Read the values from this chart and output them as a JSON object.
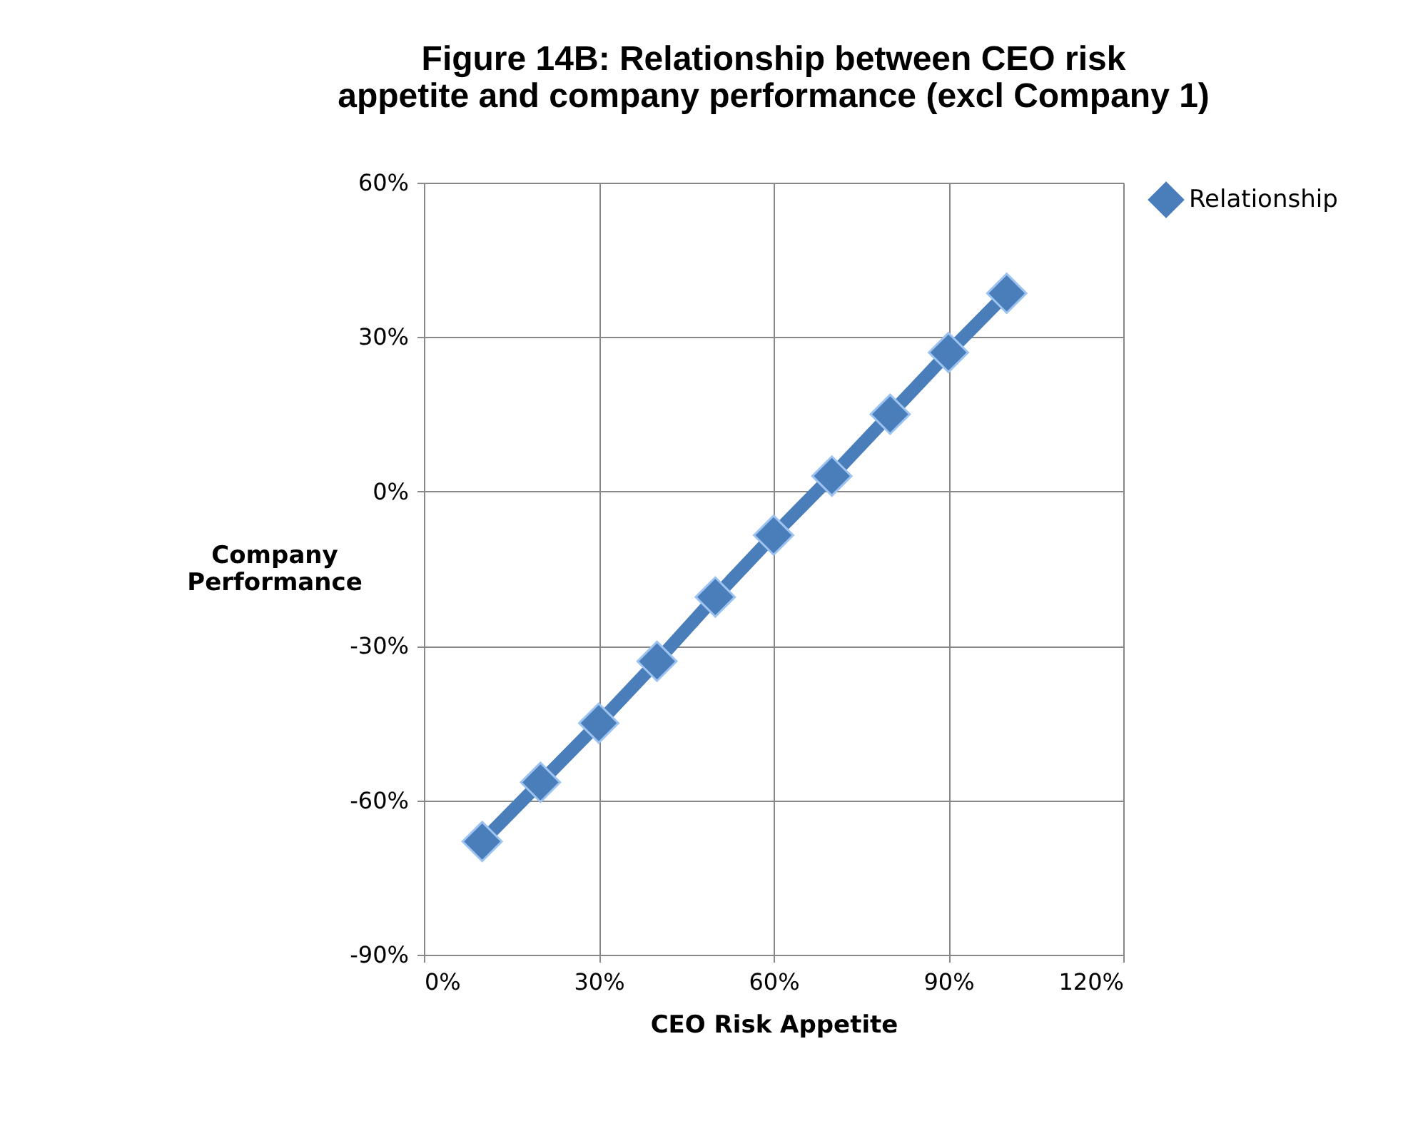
{
  "chart_data": {
    "type": "line",
    "title": "Figure 14B: Relationship between CEO risk appetite and company performance (excl Company 1)",
    "xlabel": "CEO Risk Appetite",
    "ylabel": "Company Performance",
    "x": [
      10,
      20,
      30,
      40,
      50,
      60,
      70,
      80,
      90,
      100
    ],
    "series": [
      {
        "name": "Relationship",
        "color": "#4a7ebb",
        "values": [
          -68,
          -56.5,
          -45,
          -33,
          -20.5,
          -8.5,
          3,
          15,
          27,
          38.5
        ]
      }
    ],
    "xlim": [
      0,
      120
    ],
    "ylim": [
      -90,
      60
    ],
    "xticks": [
      {
        "value": 0,
        "label": "0%"
      },
      {
        "value": 30,
        "label": "30%"
      },
      {
        "value": 60,
        "label": "60%"
      },
      {
        "value": 90,
        "label": "90%"
      },
      {
        "value": 120,
        "label": "120%"
      }
    ],
    "yticks": [
      {
        "value": -90,
        "label": "-90%"
      },
      {
        "value": -60,
        "label": "-60%"
      },
      {
        "value": -30,
        "label": "-30%"
      },
      {
        "value": 0,
        "label": "0%"
      },
      {
        "value": 30,
        "label": "30%"
      },
      {
        "value": 60,
        "label": "60%"
      }
    ],
    "grid": true,
    "legend": "right",
    "marker": "diamond",
    "line_style": "solid"
  }
}
